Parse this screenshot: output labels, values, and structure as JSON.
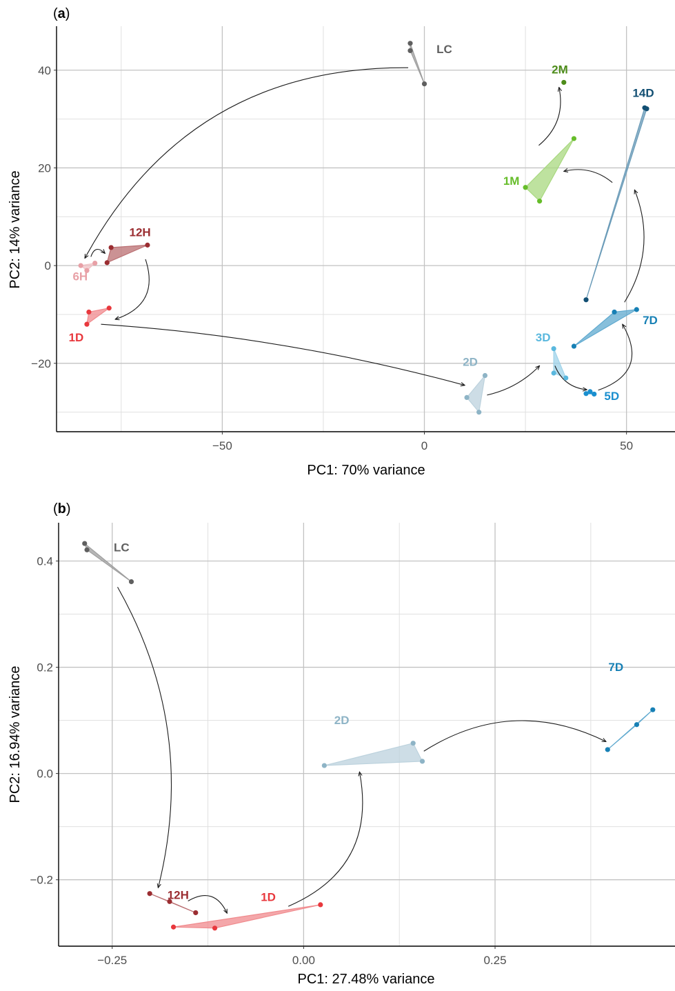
{
  "chart_data": [
    {
      "panel": "(a)",
      "type": "scatter",
      "xlabel": "PC1: 70% variance",
      "ylabel": "PC2: 14% variance",
      "xlim": [
        -91,
        62
      ],
      "ylim": [
        -34,
        49
      ],
      "xticks": [
        -50,
        0,
        50
      ],
      "xtick_labels": [
        "−50",
        "0",
        "50"
      ],
      "xminor": [
        -75,
        -25,
        25
      ],
      "yticks": [
        -20,
        0,
        20,
        40
      ],
      "ytick_labels": [
        "−20",
        "0",
        "20",
        "40"
      ],
      "yminor": [
        -30,
        -10,
        10,
        30
      ],
      "grid": true,
      "groups": [
        {
          "name": "LC",
          "color": "#5f5f5f",
          "fill": "#9e9e9e",
          "label_pos": [
            3,
            43.5
          ],
          "points": [
            [
              -3.5,
              45.5
            ],
            [
              -3.5,
              44
            ],
            [
              0,
              37.2
            ]
          ]
        },
        {
          "name": "6H",
          "color": "#e8a0a6",
          "fill": "#f0c2c6",
          "label_pos": [
            -87,
            -3
          ],
          "points": [
            [
              -85,
              0
            ],
            [
              -83.5,
              -1
            ],
            [
              -81.5,
              0.5
            ]
          ]
        },
        {
          "name": "12H",
          "color": "#9b2d31",
          "fill": "#b96d70",
          "label_pos": [
            -73,
            6
          ],
          "points": [
            [
              -77.5,
              3.7
            ],
            [
              -68.5,
              4.2
            ],
            [
              -78.5,
              0.6
            ]
          ]
        },
        {
          "name": "1D",
          "color": "#e8383d",
          "fill": "#f08a8d",
          "label_pos": [
            -88,
            -15.5
          ],
          "points": [
            [
              -83,
              -9.5
            ],
            [
              -78,
              -8.7
            ],
            [
              -83.5,
              -12
            ]
          ]
        },
        {
          "name": "2D",
          "color": "#8eb4c6",
          "fill": "#bcd2dd",
          "label_pos": [
            9.5,
            -20.5
          ],
          "points": [
            [
              15,
              -22.5
            ],
            [
              10.5,
              -27
            ],
            [
              13.5,
              -30
            ]
          ]
        },
        {
          "name": "3D",
          "color": "#5ab8de",
          "fill": "#9fd3ea",
          "label_pos": [
            27.5,
            -15.5
          ],
          "points": [
            [
              32,
              -17
            ],
            [
              32,
              -22
            ],
            [
              35,
              -23
            ]
          ]
        },
        {
          "name": "5D",
          "color": "#1a8fcf",
          "fill": "#5cb1df",
          "label_pos": [
            44.5,
            -27.5
          ],
          "points": [
            [
              40,
              -26.2
            ],
            [
              41,
              -25.8
            ],
            [
              42,
              -26.3
            ]
          ]
        },
        {
          "name": "7D",
          "color": "#1780b5",
          "fill": "#5fa9cf",
          "label_pos": [
            54,
            -12
          ],
          "points": [
            [
              37,
              -16.5
            ],
            [
              47,
              -9.5
            ],
            [
              52.5,
              -9
            ]
          ]
        },
        {
          "name": "14D",
          "color": "#124f73",
          "fill": "#6a9bb8",
          "label_pos": [
            51.5,
            34.5
          ],
          "points": [
            [
              40,
              -7
            ],
            [
              54.5,
              32.3
            ],
            [
              55,
              32.1
            ]
          ]
        },
        {
          "name": "1M",
          "color": "#66bd2a",
          "fill": "#a8d87f",
          "label_pos": [
            19.5,
            16.5
          ],
          "points": [
            [
              25,
              16
            ],
            [
              37,
              26
            ],
            [
              28.5,
              13.2
            ]
          ]
        },
        {
          "name": "2M",
          "color": "#4d8c1a",
          "fill": "#7eb553",
          "label_pos": [
            31.5,
            39.3
          ],
          "points": [
            [
              34.5,
              37.5
            ]
          ]
        }
      ],
      "arrows": [
        {
          "from": [
            -4,
            40.5
          ],
          "to": [
            -84,
            1.5
          ],
          "bend": 0.3
        },
        {
          "from": [
            -82.5,
            1.8
          ],
          "to": [
            -79,
            2.5
          ],
          "bend": -0.8
        },
        {
          "from": [
            -69,
            1.3
          ],
          "to": [
            -76.5,
            -11
          ],
          "bend": -0.5
        },
        {
          "from": [
            -80,
            -12
          ],
          "to": [
            10,
            -24.5
          ],
          "bend": -0.05
        },
        {
          "from": [
            15.5,
            -26.5
          ],
          "to": [
            28.5,
            -20.5
          ],
          "bend": 0.15
        },
        {
          "from": [
            32.3,
            -20.5
          ],
          "to": [
            40.2,
            -25.4
          ],
          "bend": 0.3
        },
        {
          "from": [
            43,
            -25.5
          ],
          "to": [
            49,
            -12
          ],
          "bend": 0.6
        },
        {
          "from": [
            49.5,
            -7.5
          ],
          "to": [
            52,
            15.5
          ],
          "bend": 0.25
        },
        {
          "from": [
            46.5,
            17
          ],
          "to": [
            34.5,
            19.3
          ],
          "bend": 0.25
        },
        {
          "from": [
            28.3,
            24.6
          ],
          "to": [
            33.3,
            36.5
          ],
          "bend": 0.3
        }
      ]
    },
    {
      "panel": "(b)",
      "type": "scatter",
      "xlabel": "PC1: 27.48% variance",
      "ylabel": "PC2: 16.94% variance",
      "xlim": [
        -0.32,
        0.485
      ],
      "ylim": [
        -0.325,
        0.472
      ],
      "xticks": [
        -0.25,
        0.0,
        0.25
      ],
      "xtick_labels": [
        "−0.25",
        "0.00",
        "0.25"
      ],
      "xminor": [
        -0.125,
        0.125,
        0.375
      ],
      "yticks": [
        -0.2,
        0.0,
        0.2,
        0.4
      ],
      "ytick_labels": [
        "−0.2",
        "0.0",
        "0.2",
        "0.4"
      ],
      "yminor": [
        -0.1,
        0.1,
        0.3
      ],
      "grid": true,
      "groups": [
        {
          "name": "LC",
          "color": "#5f5f5f",
          "fill": "#9e9e9e",
          "label_pos": [
            -0.248,
            0.418
          ],
          "points": [
            [
              -0.286,
              0.433
            ],
            [
              -0.283,
              0.421
            ],
            [
              -0.225,
              0.361
            ]
          ]
        },
        {
          "name": "12H",
          "color": "#9b2d31",
          "fill": "#b96d70",
          "label_pos": [
            -0.178,
            -0.236
          ],
          "points": [
            [
              -0.201,
              -0.226
            ],
            [
              -0.175,
              -0.241
            ],
            [
              -0.141,
              -0.262
            ]
          ]
        },
        {
          "name": "1D",
          "color": "#e8383d",
          "fill": "#f08a8d",
          "label_pos": [
            -0.056,
            -0.24
          ],
          "points": [
            [
              -0.17,
              -0.289
            ],
            [
              -0.116,
              -0.291
            ],
            [
              0.022,
              -0.247
            ]
          ]
        },
        {
          "name": "2D",
          "color": "#8eb4c6",
          "fill": "#bcd2dd",
          "label_pos": [
            0.04,
            0.093
          ],
          "points": [
            [
              0.027,
              0.015
            ],
            [
              0.143,
              0.057
            ],
            [
              0.155,
              0.023
            ]
          ]
        },
        {
          "name": "7D",
          "color": "#1780b5",
          "fill": "#5fa9cf",
          "label_pos": [
            0.398,
            0.193
          ],
          "points": [
            [
              0.397,
              0.045
            ],
            [
              0.435,
              0.092
            ],
            [
              0.456,
              0.12
            ]
          ]
        }
      ],
      "arrows": [
        {
          "from": [
            -0.243,
            0.351
          ],
          "to": [
            -0.19,
            -0.215
          ],
          "bend": -0.2
        },
        {
          "from": [
            -0.151,
            -0.24
          ],
          "to": [
            -0.1,
            -0.263
          ],
          "bend": -0.55
        },
        {
          "from": [
            -0.02,
            -0.25
          ],
          "to": [
            0.073,
            0.003
          ],
          "bend": 0.4
        },
        {
          "from": [
            0.157,
            0.042
          ],
          "to": [
            0.395,
            0.06
          ],
          "bend": -0.28
        }
      ]
    }
  ]
}
